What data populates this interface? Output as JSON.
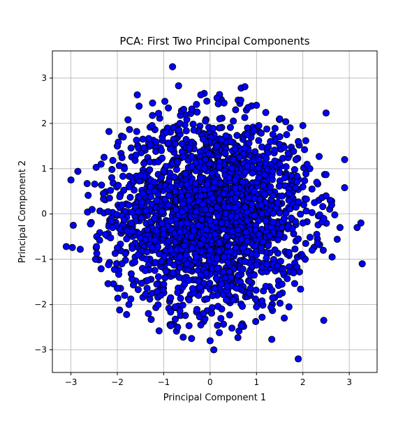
{
  "chart_data": {
    "type": "scatter",
    "title": "PCA: First Two Principal Components",
    "xlabel": "Principal Component 1",
    "ylabel": "Principal Component 2",
    "xlim": [
      -3.4,
      3.6
    ],
    "ylim": [
      -3.5,
      3.6
    ],
    "xticks": [
      -3,
      -2,
      -1,
      0,
      1,
      2,
      3
    ],
    "yticks": [
      -3,
      -2,
      -1,
      0,
      1,
      2,
      3
    ],
    "tick_labels_x": [
      "−3",
      "−2",
      "−1",
      "0",
      "1",
      "2",
      "3"
    ],
    "tick_labels_y": [
      "−3",
      "−2",
      "−1",
      "0",
      "1",
      "2",
      "3"
    ],
    "grid": true,
    "marker_fill": "#0000ff",
    "marker_edge": "#000000",
    "approx_point_count": 2000,
    "series": [
      {
        "points": [
          [
            -0.81,
            3.25
          ],
          [
            -0.68,
            2.83
          ],
          [
            -1.57,
            2.63
          ],
          [
            -0.2,
            2.63
          ],
          [
            0.67,
            2.78
          ],
          [
            0.75,
            2.81
          ],
          [
            0.15,
            2.56
          ],
          [
            1.0,
            2.4
          ],
          [
            2.5,
            2.23
          ],
          [
            -3.0,
            0.75
          ],
          [
            -2.95,
            -0.25
          ],
          [
            -3.1,
            -0.72
          ],
          [
            -2.97,
            -0.74
          ],
          [
            -2.8,
            -0.78
          ],
          [
            -2.85,
            0.94
          ],
          [
            -2.65,
            0.67
          ],
          [
            -2.63,
            0.41
          ],
          [
            -2.58,
            -0.22
          ],
          [
            -2.45,
            -0.72
          ],
          [
            -2.47,
            -1.0
          ],
          [
            -2.35,
            -1.21
          ],
          [
            -2.2,
            -1.54
          ],
          [
            -2.0,
            -1.64
          ],
          [
            -1.99,
            -1.86
          ],
          [
            -1.95,
            -2.12
          ],
          [
            -1.8,
            -2.22
          ],
          [
            -1.75,
            -2.0
          ],
          [
            -1.33,
            -2.2
          ],
          [
            -1.27,
            -2.33
          ],
          [
            -1.1,
            -2.58
          ],
          [
            -0.85,
            -2.47
          ],
          [
            -0.7,
            -2.5
          ],
          [
            -0.58,
            -2.72
          ],
          [
            -0.4,
            -2.75
          ],
          [
            -0.2,
            -2.45
          ],
          [
            0.0,
            -2.8
          ],
          [
            0.08,
            -3.0
          ],
          [
            0.2,
            -2.62
          ],
          [
            0.47,
            -2.52
          ],
          [
            0.6,
            -2.73
          ],
          [
            0.67,
            -2.47
          ],
          [
            1.0,
            -2.05
          ],
          [
            1.33,
            -2.77
          ],
          [
            1.6,
            -2.3
          ],
          [
            1.7,
            -2.05
          ],
          [
            1.95,
            -1.66
          ],
          [
            2.45,
            -2.35
          ],
          [
            1.9,
            -3.2
          ],
          [
            2.63,
            -0.95
          ],
          [
            2.74,
            -0.56
          ],
          [
            2.8,
            -0.3
          ],
          [
            3.17,
            -0.3
          ],
          [
            3.25,
            -0.2
          ],
          [
            3.28,
            -1.1
          ],
          [
            2.9,
            0.58
          ],
          [
            2.9,
            1.2
          ],
          [
            2.5,
            0.87
          ],
          [
            2.5,
            0.4
          ],
          [
            2.35,
            1.27
          ],
          [
            2.3,
            0.7
          ],
          [
            2.0,
            1.95
          ],
          [
            1.9,
            1.6
          ],
          [
            1.6,
            1.47
          ],
          [
            1.4,
            1.89
          ],
          [
            1.5,
            2.1
          ],
          [
            1.2,
            2.24
          ],
          [
            0.82,
            2.35
          ],
          [
            0.55,
            2.3
          ],
          [
            0.3,
            2.45
          ],
          [
            -0.07,
            2.49
          ],
          [
            -0.28,
            2.25
          ],
          [
            -0.57,
            2.31
          ],
          [
            -0.9,
            2.34
          ],
          [
            -1.24,
            2.45
          ],
          [
            -1.53,
            2.38
          ],
          [
            -1.77,
            2.08
          ],
          [
            -1.87,
            1.7
          ],
          [
            -2.0,
            1.5
          ],
          [
            -2.18,
            1.82
          ],
          [
            -2.35,
            1.1
          ],
          [
            -2.12,
            0.8
          ],
          [
            -2.3,
            0.45
          ],
          [
            -2.2,
            0.05
          ],
          [
            -2.1,
            -0.3
          ],
          [
            -2.0,
            -0.75
          ],
          [
            -1.9,
            -1.1
          ],
          [
            -1.7,
            -1.32
          ],
          [
            -1.55,
            -1.67
          ],
          [
            -1.3,
            -1.88
          ],
          [
            -1.0,
            -1.55
          ],
          [
            -0.75,
            -2.05
          ],
          [
            -0.45,
            -1.9
          ],
          [
            -0.15,
            -2.2
          ],
          [
            0.25,
            -2.1
          ],
          [
            0.5,
            -1.9
          ],
          [
            0.85,
            -1.75
          ],
          [
            1.12,
            -2.28
          ],
          [
            1.35,
            -1.85
          ],
          [
            1.55,
            -1.55
          ],
          [
            1.8,
            -1.3
          ],
          [
            2.05,
            -1.0
          ],
          [
            2.2,
            -0.8
          ],
          [
            2.3,
            -0.45
          ],
          [
            2.45,
            -0.1
          ],
          [
            2.62,
            0.2
          ],
          [
            2.25,
            0.25
          ],
          [
            2.0,
            0.6
          ],
          [
            2.15,
            1.0
          ],
          [
            1.85,
            1.2
          ],
          [
            1.65,
            1.75
          ],
          [
            1.3,
            1.6
          ],
          [
            1.05,
            1.95
          ],
          [
            0.8,
            1.75
          ],
          [
            0.5,
            2.05
          ],
          [
            0.2,
            1.9
          ],
          [
            -0.1,
            2.05
          ],
          [
            -0.35,
            1.85
          ],
          [
            -0.65,
            2.0
          ],
          [
            -0.95,
            1.8
          ],
          [
            -1.25,
            1.95
          ],
          [
            -1.45,
            1.65
          ],
          [
            -1.6,
            1.3
          ],
          [
            -1.85,
            1.0
          ],
          [
            -1.75,
            0.6
          ],
          [
            -1.9,
            0.2
          ],
          [
            -1.7,
            -0.2
          ],
          [
            -1.8,
            -0.55
          ],
          [
            -1.55,
            -0.9
          ],
          [
            -1.4,
            -1.25
          ],
          [
            -1.15,
            -1.55
          ],
          [
            -0.85,
            -1.85
          ],
          [
            -0.55,
            -1.55
          ],
          [
            -0.25,
            -1.8
          ],
          [
            0.1,
            -1.65
          ],
          [
            0.35,
            -1.9
          ],
          [
            0.65,
            -1.5
          ],
          [
            0.95,
            -1.35
          ],
          [
            1.2,
            -1.6
          ],
          [
            1.45,
            -1.15
          ],
          [
            1.7,
            -0.85
          ],
          [
            1.9,
            -0.55
          ],
          [
            2.0,
            -0.2
          ],
          [
            1.85,
            0.15
          ],
          [
            1.7,
            0.45
          ],
          [
            1.75,
            0.85
          ],
          [
            1.5,
            1.1
          ],
          [
            1.25,
            1.35
          ],
          [
            1.05,
            1.2
          ],
          [
            0.75,
            1.45
          ],
          [
            0.45,
            1.6
          ],
          [
            0.15,
            1.5
          ],
          [
            -0.15,
            1.65
          ],
          [
            -0.45,
            1.45
          ],
          [
            -0.75,
            1.55
          ],
          [
            -1.05,
            1.4
          ],
          [
            -1.3,
            1.15
          ],
          [
            -1.5,
            0.85
          ],
          [
            -1.45,
            0.45
          ],
          [
            -1.55,
            0.05
          ],
          [
            -1.35,
            -0.35
          ],
          [
            -1.25,
            -0.75
          ],
          [
            -1.05,
            -1.05
          ],
          [
            -0.8,
            -1.3
          ],
          [
            -0.5,
            -1.1
          ],
          [
            -0.2,
            -1.35
          ],
          [
            0.15,
            -1.2
          ],
          [
            0.45,
            -1.4
          ],
          [
            0.75,
            -1.05
          ],
          [
            1.0,
            -0.9
          ],
          [
            1.25,
            -0.7
          ],
          [
            1.5,
            -0.45
          ],
          [
            1.6,
            -0.1
          ],
          [
            1.45,
            0.25
          ],
          [
            1.3,
            0.6
          ],
          [
            1.35,
            0.95
          ],
          [
            1.05,
            0.8
          ],
          [
            0.8,
            1.05
          ],
          [
            0.5,
            1.2
          ],
          [
            0.2,
            1.05
          ],
          [
            -0.1,
            1.2
          ],
          [
            -0.4,
            1.05
          ],
          [
            -0.7,
            1.15
          ],
          [
            -1.0,
            0.95
          ],
          [
            -1.2,
            0.7
          ],
          [
            -1.15,
            0.3
          ],
          [
            -1.2,
            -0.1
          ],
          [
            -1.0,
            -0.45
          ],
          [
            -0.85,
            -0.8
          ],
          [
            -0.55,
            -0.7
          ],
          [
            -0.3,
            -0.95
          ],
          [
            0.0,
            -0.8
          ],
          [
            0.3,
            -0.95
          ],
          [
            0.55,
            -0.75
          ],
          [
            0.8,
            -0.6
          ],
          [
            1.05,
            -0.45
          ],
          [
            1.2,
            -0.15
          ],
          [
            1.1,
            0.2
          ],
          [
            0.95,
            0.5
          ],
          [
            0.7,
            0.7
          ],
          [
            0.4,
            0.8
          ],
          [
            0.1,
            0.7
          ],
          [
            -0.2,
            0.8
          ],
          [
            -0.5,
            0.65
          ],
          [
            -0.75,
            0.5
          ],
          [
            -0.9,
            0.2
          ],
          [
            -0.85,
            -0.15
          ],
          [
            -0.65,
            -0.4
          ],
          [
            -0.4,
            -0.5
          ],
          [
            -0.15,
            -0.55
          ],
          [
            0.1,
            -0.45
          ],
          [
            0.35,
            -0.5
          ],
          [
            0.6,
            -0.35
          ],
          [
            0.8,
            -0.15
          ],
          [
            0.75,
            0.15
          ],
          [
            0.55,
            0.35
          ],
          [
            0.3,
            0.45
          ],
          [
            0.05,
            0.35
          ],
          [
            -0.2,
            0.4
          ],
          [
            -0.45,
            0.3
          ],
          [
            -0.6,
            0.05
          ],
          [
            -0.5,
            -0.2
          ],
          [
            -0.25,
            -0.25
          ],
          [
            0.0,
            -0.15
          ],
          [
            0.25,
            -0.2
          ],
          [
            0.45,
            -0.05
          ],
          [
            0.4,
            0.15
          ],
          [
            0.15,
            0.15
          ],
          [
            -0.1,
            0.1
          ],
          [
            -0.3,
            0.05
          ]
        ]
      }
    ]
  }
}
